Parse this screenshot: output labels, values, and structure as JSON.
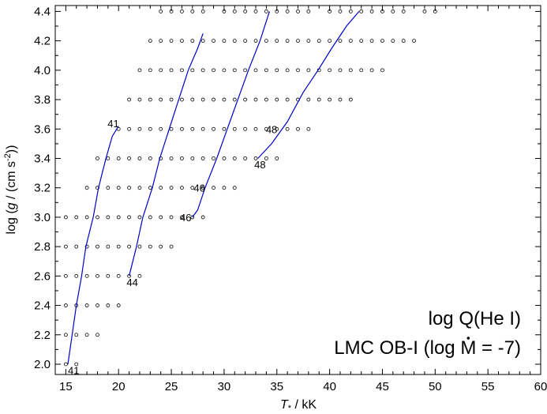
{
  "chart_data": {
    "type": "scatter",
    "xlim": [
      14,
      60
    ],
    "ylim": [
      1.93,
      4.44
    ],
    "xticks": [
      15,
      20,
      25,
      30,
      35,
      40,
      45,
      50,
      55,
      60
    ],
    "yticks": [
      2.0,
      2.2,
      2.4,
      2.6,
      2.8,
      3.0,
      3.2,
      3.4,
      3.6,
      3.8,
      4.0,
      4.2,
      4.4
    ],
    "xlabel": {
      "main": "T",
      "sub": "*",
      "unit": " / kK"
    },
    "ylabel": {
      "prefix": "log (",
      "var": "g",
      "unit": " / (cm s",
      "exp": "-2",
      "suffix": "))"
    },
    "grid": false,
    "annotations": {
      "line1": "log Q(He I)",
      "line2_pre": "LMC OB-I (log ",
      "line2_var": "M",
      "line2_post": " = -7)"
    },
    "grid_points": [
      {
        "logg": 4.4,
        "T": [
          24,
          25,
          26,
          27,
          28,
          30,
          31,
          32,
          33,
          34,
          35,
          36,
          37,
          38,
          40,
          41,
          42,
          43,
          44,
          45,
          46,
          47,
          49,
          50
        ]
      },
      {
        "logg": 4.2,
        "T": [
          23,
          24,
          25,
          26,
          27,
          28,
          29,
          30,
          31,
          32,
          33,
          34,
          35,
          36,
          37,
          38,
          39,
          40,
          41,
          42,
          43,
          44,
          45,
          46,
          47,
          48
        ]
      },
      {
        "logg": 4.0,
        "T": [
          22,
          23,
          24,
          25,
          26,
          27,
          28,
          29,
          30,
          31,
          32,
          33,
          34,
          35,
          36,
          37,
          38,
          39,
          40,
          41,
          42,
          43,
          44,
          45
        ]
      },
      {
        "logg": 3.8,
        "T": [
          21,
          22,
          23,
          24,
          25,
          26,
          27,
          28,
          29,
          30,
          31,
          32,
          33,
          34,
          35,
          36,
          37,
          38,
          39,
          40,
          41,
          42
        ]
      },
      {
        "logg": 3.6,
        "T": [
          20,
          21,
          22,
          23,
          24,
          25,
          26,
          27,
          28,
          29,
          30,
          31,
          32,
          33,
          34,
          35,
          36,
          37,
          38
        ]
      },
      {
        "logg": 3.4,
        "T": [
          18,
          19,
          20,
          21,
          22,
          23,
          24,
          25,
          26,
          27,
          28,
          29,
          30,
          31,
          32,
          33,
          34,
          35
        ]
      },
      {
        "logg": 3.2,
        "T": [
          17,
          18,
          19,
          20,
          21,
          22,
          23,
          24,
          25,
          26,
          27,
          28,
          29,
          30,
          31
        ]
      },
      {
        "logg": 3.0,
        "T": [
          15,
          16,
          17,
          18,
          19,
          20,
          21,
          22,
          23,
          24,
          25,
          26,
          27,
          28
        ]
      },
      {
        "logg": 2.8,
        "T": [
          15,
          16,
          17,
          18,
          19,
          20,
          21,
          22,
          23,
          24,
          25
        ]
      },
      {
        "logg": 2.6,
        "T": [
          15,
          16,
          17,
          18,
          19,
          20,
          21,
          22
        ]
      },
      {
        "logg": 2.4,
        "T": [
          15,
          16,
          17,
          18,
          19,
          20
        ]
      },
      {
        "logg": 2.2,
        "T": [
          15,
          16,
          17,
          18
        ]
      },
      {
        "logg": 2.0,
        "T": [
          15,
          16
        ]
      }
    ],
    "contours": [
      {
        "level": "41",
        "points": [
          [
            15.2,
            2.0
          ],
          [
            15.6,
            2.2
          ],
          [
            16.0,
            2.4
          ],
          [
            16.5,
            2.6
          ],
          [
            16.9,
            2.8
          ],
          [
            17.6,
            3.0
          ],
          [
            18.1,
            3.2
          ],
          [
            18.8,
            3.4
          ],
          [
            19.4,
            3.55
          ],
          [
            20.0,
            3.62
          ]
        ]
      },
      {
        "level": "44",
        "points": [
          [
            21.0,
            2.6
          ],
          [
            21.7,
            2.8
          ],
          [
            22.3,
            3.0
          ],
          [
            23.2,
            3.2
          ],
          [
            23.9,
            3.4
          ],
          [
            24.8,
            3.6
          ],
          [
            25.7,
            3.8
          ],
          [
            26.6,
            4.0
          ],
          [
            27.5,
            4.15
          ],
          [
            28.0,
            4.25
          ]
        ]
      },
      {
        "level": "46",
        "points": [
          [
            27.0,
            3.0
          ],
          [
            27.5,
            3.05
          ],
          [
            28.2,
            3.2
          ],
          [
            29.3,
            3.4
          ],
          [
            30.3,
            3.6
          ],
          [
            31.3,
            3.8
          ],
          [
            32.3,
            4.0
          ],
          [
            33.4,
            4.2
          ],
          [
            34.3,
            4.4
          ]
        ]
      },
      {
        "level": "48",
        "points": [
          [
            33.2,
            3.4
          ],
          [
            34.5,
            3.5
          ],
          [
            36.0,
            3.65
          ],
          [
            37.5,
            3.85
          ],
          [
            38.9,
            4.0
          ],
          [
            40.2,
            4.15
          ],
          [
            41.6,
            4.3
          ],
          [
            42.8,
            4.4
          ]
        ]
      }
    ],
    "contour_labels": [
      {
        "text": "41",
        "T": 15.2,
        "logg": 1.96,
        "anchor": "start"
      },
      {
        "text": "41",
        "T": 19.5,
        "logg": 3.64,
        "anchor": "middle"
      },
      {
        "text": "44",
        "T": 21.3,
        "logg": 2.56,
        "anchor": "middle"
      },
      {
        "text": "46",
        "T": 26.9,
        "logg": 3.0,
        "anchor": "end"
      },
      {
        "text": "46",
        "T": 28.2,
        "logg": 3.2,
        "anchor": "end"
      },
      {
        "text": "48",
        "T": 33.4,
        "logg": 3.36,
        "anchor": "middle"
      },
      {
        "text": "48",
        "T": 34.5,
        "logg": 3.6,
        "anchor": "middle"
      }
    ]
  }
}
